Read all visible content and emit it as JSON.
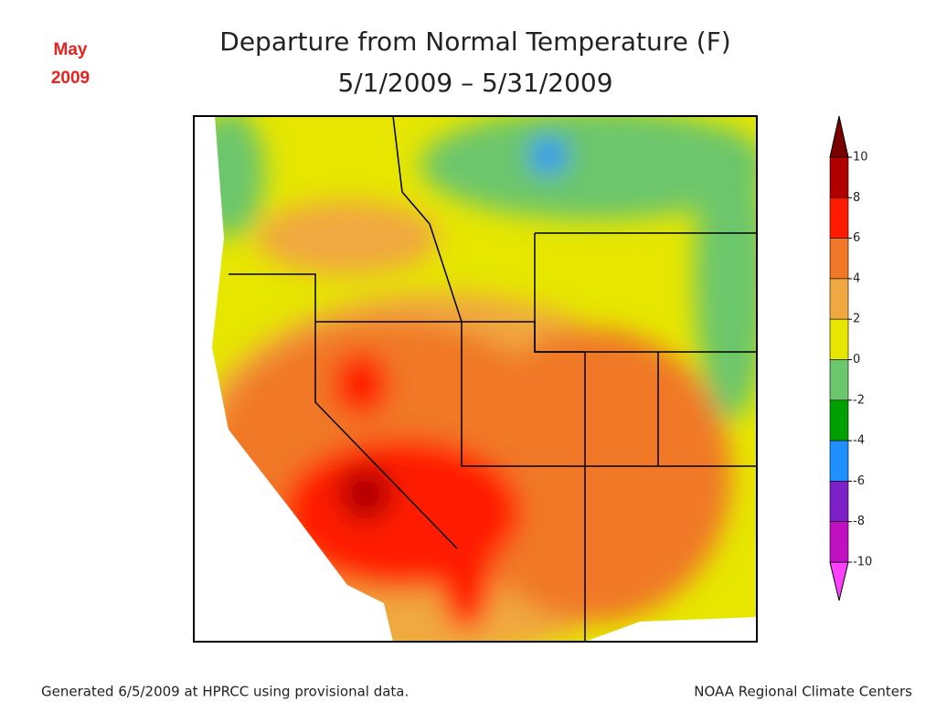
{
  "label": [
    "May",
    "2009"
  ],
  "title": [
    "Departure from Normal Temperature (F)",
    "5/1/2009 – 5/31/2009"
  ],
  "legend": {
    "ticks": [
      10,
      8,
      6,
      4,
      2,
      0,
      -2,
      -4,
      -6,
      -8,
      -10
    ],
    "colors": [
      "#b00000",
      "#ff1a00",
      "#f07828",
      "#f0a840",
      "#e6e600",
      "#6cc66c",
      "#00a000",
      "#1e90ff",
      "#7e20c8",
      "#c010c0"
    ],
    "over_color": "#7a0000",
    "under_color": "#ff40ff"
  },
  "footer": {
    "left": "Generated 6/5/2009 at HPRCC using provisional data.",
    "right": "NOAA Regional Climate Centers"
  }
}
